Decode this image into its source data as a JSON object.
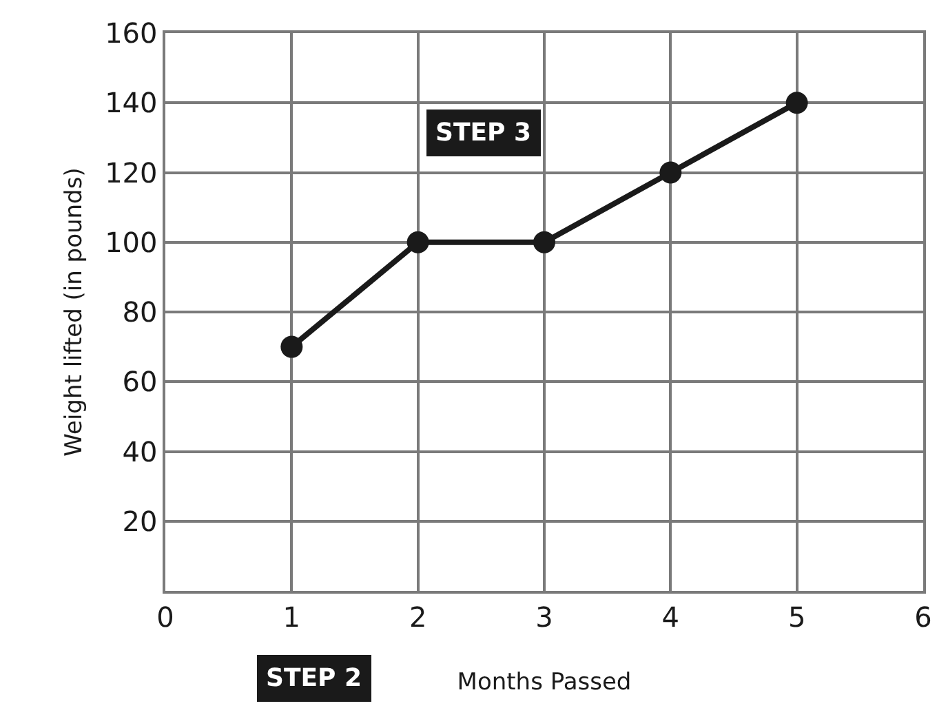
{
  "chart_data": {
    "type": "line",
    "xlabel": "Months Passed",
    "ylabel": "Weight lifted (in pounds)",
    "x": [
      1,
      2,
      3,
      4,
      5
    ],
    "series": [
      {
        "color": "#1a1a1a",
        "values": [
          70,
          100,
          100,
          120,
          140
        ]
      }
    ],
    "xlim": [
      0,
      6
    ],
    "xticks": [
      0,
      1,
      2,
      3,
      4,
      5,
      6
    ],
    "ylim": [
      0,
      160
    ],
    "yticks": [
      {
        "value": 0,
        "label": null
      },
      20,
      40,
      60,
      80,
      100,
      120,
      140,
      160
    ],
    "grid": true,
    "marker": "circle",
    "line_style": "solid",
    "annotations": [
      "STEP 3",
      "STEP 2"
    ]
  }
}
